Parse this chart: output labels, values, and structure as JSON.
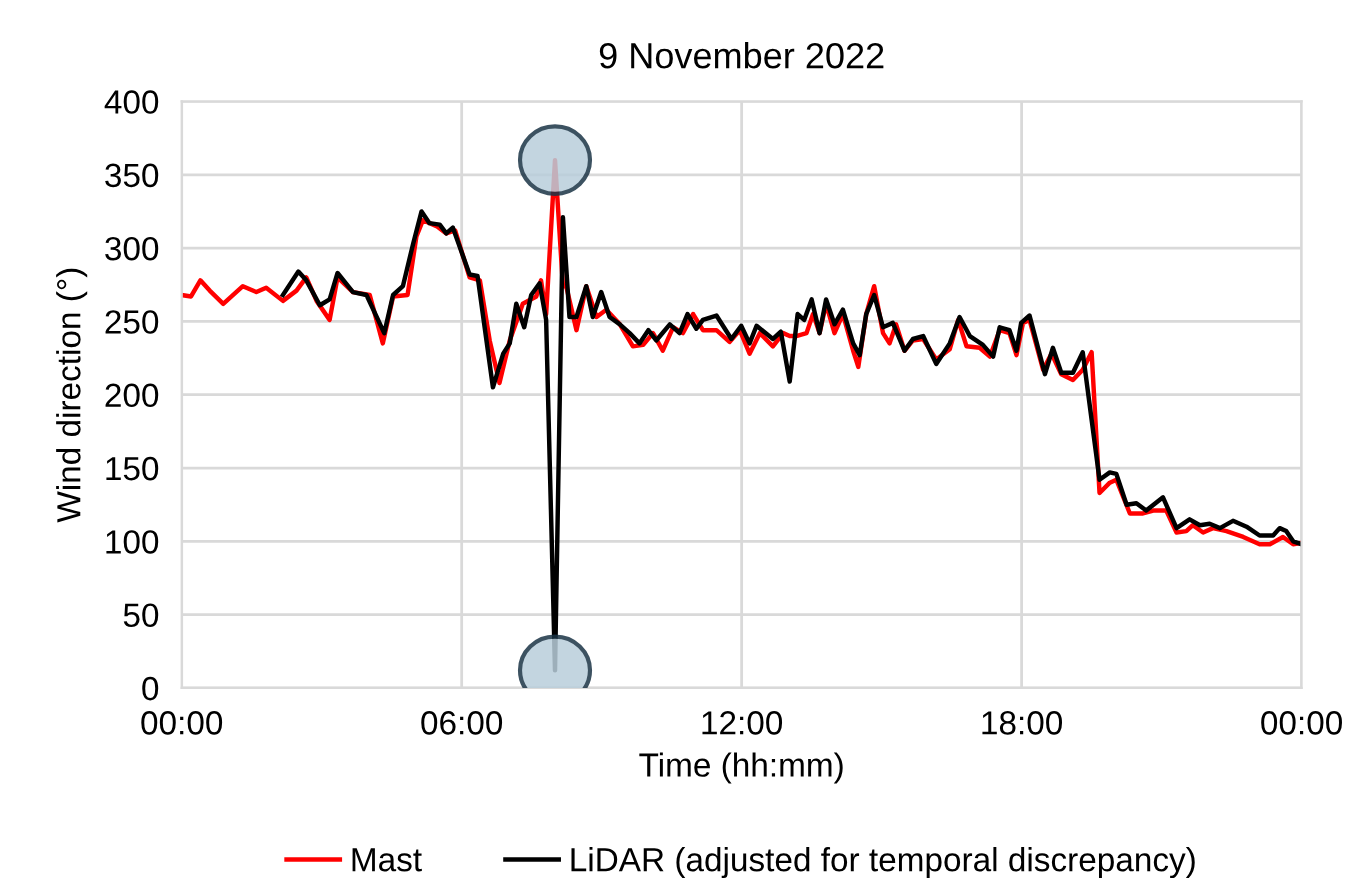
{
  "chart_data": {
    "type": "line",
    "title": "9 November 2022",
    "xlabel": "Time (hh:mm)",
    "ylabel": "Wind direction (°)",
    "xlim": [
      0,
      24
    ],
    "xticks": [
      {
        "value": 0,
        "label": "00:00"
      },
      {
        "value": 6,
        "label": "06:00"
      },
      {
        "value": 12,
        "label": "12:00"
      },
      {
        "value": 18,
        "label": "18:00"
      },
      {
        "value": 24,
        "label": "00:00"
      }
    ],
    "ylim": [
      0,
      400
    ],
    "yticks": [
      0,
      50,
      100,
      150,
      200,
      250,
      300,
      350,
      400
    ],
    "grid": true,
    "legend": "bottom",
    "marker": "none",
    "line_style": "solid",
    "series": [
      {
        "name": "Mast",
        "color": "#ff0000",
        "x": [
          0,
          0.2,
          0.4,
          0.6,
          0.89,
          1.31,
          1.6,
          1.81,
          2.17,
          2.46,
          2.67,
          2.89,
          3.17,
          3.34,
          3.67,
          4.03,
          4.31,
          4.53,
          4.84,
          5.03,
          5.17,
          5.46,
          5.67,
          5.86,
          6.17,
          6.39,
          6.6,
          6.81,
          7.03,
          7.31,
          7.6,
          7.7,
          7.81,
          8.0,
          8.17,
          8.24,
          8.46,
          8.67,
          8.89,
          9.1,
          9.39,
          9.67,
          9.89,
          10.1,
          10.31,
          10.53,
          10.74,
          10.96,
          11.17,
          11.46,
          11.74,
          11.96,
          12.17,
          12.39,
          12.67,
          12.89,
          13.03,
          13.17,
          13.39,
          13.53,
          13.67,
          13.81,
          13.99,
          14.17,
          14.39,
          14.5,
          14.67,
          14.84,
          15.03,
          15.17,
          15.31,
          15.49,
          15.67,
          15.89,
          16.17,
          16.46,
          16.64,
          16.82,
          17.1,
          17.32,
          17.53,
          17.74,
          17.89,
          18.03,
          18.17,
          18.46,
          18.64,
          18.85,
          19.1,
          19.31,
          19.5,
          19.67,
          19.89,
          20.03,
          20.32,
          20.6,
          20.82,
          21.1,
          21.32,
          21.53,
          21.67,
          21.89,
          22.1,
          22.39,
          22.75,
          23.1,
          23.32,
          23.6,
          23.82,
          24
        ],
        "values": [
          268,
          267,
          278,
          271,
          262,
          274,
          270,
          273,
          264,
          271,
          280,
          264,
          251,
          280,
          270,
          268,
          235,
          267,
          268,
          308,
          319,
          315,
          310,
          312,
          280,
          278,
          237,
          208,
          237,
          262,
          267,
          278,
          255,
          360,
          274,
          274,
          244,
          274,
          253,
          258,
          248,
          233,
          234,
          242,
          230,
          246,
          242,
          255,
          244,
          244,
          236,
          244,
          228,
          242,
          233,
          242,
          240,
          240,
          242,
          255,
          242,
          262,
          242,
          255,
          230,
          219,
          255,
          274,
          242,
          235,
          248,
          230,
          237,
          238,
          224,
          231,
          251,
          233,
          232,
          226,
          244,
          242,
          227,
          249,
          251,
          217,
          228,
          214,
          210,
          217,
          229,
          133,
          140,
          142,
          119,
          119,
          121,
          121,
          106,
          107,
          111,
          106,
          109,
          107,
          103,
          98,
          98,
          103,
          98,
          99
        ]
      },
      {
        "name": "LiDAR (adjusted for temporal discrepancy)",
        "color": "#000000",
        "x": [
          2.17,
          2.5,
          2.67,
          2.96,
          3.17,
          3.34,
          3.67,
          3.96,
          4.34,
          4.53,
          4.74,
          4.96,
          5.14,
          5.31,
          5.53,
          5.67,
          5.81,
          6.17,
          6.34,
          6.67,
          6.89,
          7.03,
          7.17,
          7.34,
          7.49,
          7.67,
          7.81,
          8.0,
          8.17,
          8.31,
          8.46,
          8.67,
          8.81,
          8.99,
          9.17,
          9.39,
          9.6,
          9.81,
          10.0,
          10.17,
          10.46,
          10.67,
          10.84,
          11.03,
          11.17,
          11.46,
          11.78,
          11.99,
          12.17,
          12.32,
          12.67,
          12.84,
          13.03,
          13.2,
          13.34,
          13.5,
          13.67,
          13.81,
          13.99,
          14.17,
          14.39,
          14.53,
          14.67,
          14.84,
          15.03,
          15.24,
          15.49,
          15.67,
          15.89,
          16.17,
          16.46,
          16.67,
          16.89,
          17.17,
          17.39,
          17.53,
          17.74,
          17.89,
          17.99,
          18.17,
          18.5,
          18.67,
          18.85,
          19.1,
          19.31,
          19.5,
          19.67,
          19.89,
          20.03,
          20.25,
          20.46,
          20.67,
          21.03,
          21.32,
          21.6,
          21.82,
          22.03,
          22.25,
          22.53,
          22.82,
          23.1,
          23.39,
          23.53,
          23.67,
          23.82,
          24
        ],
        "values": [
          268,
          284,
          278,
          261,
          265,
          283,
          270,
          268,
          242,
          268,
          274,
          303,
          325,
          317,
          316,
          310,
          314,
          282,
          281,
          205,
          228,
          235,
          262,
          246,
          268,
          276,
          251,
          12,
          321,
          253,
          253,
          274,
          253,
          270,
          253,
          248,
          242,
          235,
          244,
          237,
          248,
          242,
          255,
          245,
          251,
          254,
          238,
          247,
          235,
          247,
          238,
          243,
          209,
          255,
          251,
          265,
          242,
          265,
          248,
          258,
          235,
          227,
          255,
          268,
          246,
          249,
          230,
          238,
          240,
          221,
          235,
          253,
          240,
          234,
          226,
          246,
          244,
          230,
          249,
          254,
          214,
          232,
          215,
          215,
          229,
          183,
          142,
          147,
          146,
          125,
          126,
          121,
          130,
          109,
          115,
          111,
          112,
          109,
          114,
          110,
          104,
          104,
          109,
          107,
          100,
          98
        ]
      }
    ]
  }
}
